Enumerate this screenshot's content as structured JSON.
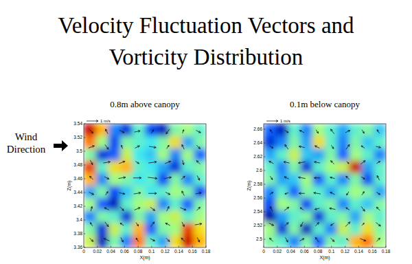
{
  "title": [
    "Velocity Fluctuation Vectors and",
    "Vorticity Distribution"
  ],
  "annotation": [
    "Wind",
    "Direction"
  ],
  "chart_data": [
    {
      "type": "heatmap",
      "title": "0.8m above canopy",
      "x_label": "X(m)",
      "y_label": "Z(m)",
      "xlim": [
        0,
        0.18
      ],
      "xticks": [
        0,
        0.02,
        0.04,
        0.06,
        0.08,
        0.1,
        0.12,
        0.14,
        0.16,
        0.18
      ],
      "ylim": [
        3.36,
        3.54
      ],
      "yticks": [
        3.36,
        3.38,
        3.4,
        3.42,
        3.44,
        3.46,
        3.48,
        3.5,
        3.52,
        3.54
      ],
      "cells": [
        [
          0.9,
          0.6,
          -0.3,
          -0.6,
          0.1,
          -0.5,
          -0.7,
          0.2,
          0.3,
          0.1
        ],
        [
          0.7,
          0.3,
          -0.5,
          0.2,
          0.1,
          0,
          0.2,
          0.5,
          -0.2,
          0.2
        ],
        [
          0.2,
          -0.6,
          -0.4,
          0.4,
          0,
          -0.1,
          0.3,
          -0.3,
          0.3,
          -0.4
        ],
        [
          0.8,
          0.1,
          0.5,
          0.6,
          0.1,
          0,
          -0.2,
          -0.6,
          0.1,
          0.2
        ],
        [
          0.6,
          -0.3,
          0.3,
          0.2,
          0,
          0.1,
          -0.5,
          0.2,
          -0.3,
          0.1
        ],
        [
          -0.2,
          0.2,
          -0.5,
          -0.1,
          0.2,
          0,
          0.1,
          0.3,
          0.2,
          -0.5
        ],
        [
          0.3,
          -0.4,
          -0.7,
          0.1,
          0.3,
          0.4,
          -0.3,
          0.1,
          -0.4,
          0.2
        ],
        [
          -0.3,
          0.2,
          0.1,
          -0.6,
          0.2,
          -0.2,
          0.3,
          0.4,
          0.1,
          0.3
        ],
        [
          0.2,
          -0.6,
          0.4,
          0.1,
          0.6,
          -0.4,
          0.2,
          0.3,
          0.8,
          0.5
        ],
        [
          0.4,
          -0.7,
          0.2,
          -0.3,
          0.7,
          0.1,
          -0.2,
          0.5,
          0.9,
          0.6
        ]
      ],
      "vectors": {
        "u": [
          [
            0.3,
            -0.2,
            0.4,
            0.5,
            0.2,
            -0.3,
            0.1,
            0.4
          ],
          [
            0.5,
            0.3,
            -0.1,
            0.4,
            0.6,
            0.2,
            -0.2,
            0.3
          ],
          [
            0.2,
            0.6,
            0.5,
            0.3,
            0.7,
            0.5,
            0.1,
            -0.3
          ],
          [
            -0.3,
            0.4,
            0.6,
            0.7,
            0.8,
            0.6,
            0.3,
            0.2
          ],
          [
            0.4,
            0.2,
            0.5,
            0.6,
            0.7,
            0.4,
            -0.2,
            0.5
          ],
          [
            0.1,
            -0.4,
            0.3,
            0.5,
            0.4,
            0.2,
            0.5,
            0.3
          ],
          [
            -0.2,
            0.3,
            -0.3,
            0.2,
            0.3,
            -0.4,
            0.2,
            0.6
          ],
          [
            0.3,
            -0.5,
            0.2,
            -0.2,
            0.4,
            0.3,
            -0.3,
            0.2
          ]
        ],
        "v": [
          [
            -0.3,
            0.4,
            -0.2,
            0.1,
            0.3,
            -0.4,
            0.3,
            -0.2
          ],
          [
            0.2,
            -0.4,
            0.3,
            0.2,
            -0.1,
            0.3,
            0.4,
            -0.3
          ],
          [
            -0.4,
            0.1,
            0.2,
            -0.2,
            0.1,
            0.2,
            -0.4,
            0.3
          ],
          [
            0.3,
            -0.2,
            0.1,
            0,
            -0.1,
            0.1,
            0.3,
            -0.4
          ],
          [
            -0.2,
            0.3,
            -0.1,
            0.1,
            0,
            -0.2,
            0.4,
            0.1
          ],
          [
            0.4,
            0.2,
            -0.3,
            0.2,
            -0.3,
            0.4,
            -0.2,
            0.3
          ],
          [
            0.3,
            -0.4,
            0.2,
            -0.3,
            0.4,
            0.2,
            -0.4,
            0.1
          ],
          [
            -0.3,
            0.2,
            -0.4,
            0.3,
            -0.2,
            -0.3,
            0.3,
            -0.4
          ]
        ]
      },
      "reference_vector": {
        "value": 1,
        "label": "1 m/s"
      }
    },
    {
      "type": "heatmap",
      "title": "0.1m below canopy",
      "x_label": "X(m)",
      "y_label": "Z(m)",
      "xlim": [
        0,
        0.18
      ],
      "xticks": [
        0,
        0.02,
        0.04,
        0.06,
        0.08,
        0.1,
        0.12,
        0.14,
        0.16,
        0.18
      ],
      "ylim": [
        2.488,
        2.668
      ],
      "yticks": [
        2.5,
        2.52,
        2.54,
        2.56,
        2.58,
        2.6,
        2.62,
        2.64,
        2.66
      ],
      "cells": [
        [
          -0.4,
          -0.7,
          0.1,
          -0.3,
          0.3,
          0.1,
          -0.2,
          0.1,
          0.2,
          -0.1
        ],
        [
          -0.6,
          -0.3,
          0.2,
          -0.2,
          0.5,
          0.1,
          -0.3,
          0.2,
          -0.1,
          0.1
        ],
        [
          -0.2,
          0.1,
          0.4,
          -0.1,
          -0.2,
          0.2,
          -0.4,
          0.3,
          0.1,
          -0.3
        ],
        [
          0.1,
          -0.3,
          0.2,
          -0.6,
          0.1,
          0.3,
          0.4,
          0.9,
          -0.2,
          0.1
        ],
        [
          0.2,
          -0.2,
          -0.1,
          0.3,
          -0.4,
          0.1,
          -0.3,
          0.2,
          -0.5,
          0.1
        ],
        [
          -0.3,
          0.1,
          -0.4,
          0.2,
          0.1,
          -0.2,
          0.1,
          0.3,
          0.2,
          -0.2
        ],
        [
          -0.5,
          0.3,
          0.2,
          -0.5,
          0.1,
          0.2,
          -0.3,
          0.1,
          -0.1,
          0.2
        ],
        [
          -0.8,
          -0.2,
          0.1,
          0.2,
          -0.6,
          0.1,
          0.2,
          -0.2,
          0.3,
          0.1
        ],
        [
          0.3,
          -0.6,
          0.2,
          -0.7,
          0.1,
          -0.3,
          0.4,
          0.1,
          0.5,
          0.2
        ],
        [
          0.2,
          0.1,
          -0.3,
          0.2,
          -0.4,
          0.2,
          0.1,
          0.6,
          0.7,
          0.3
        ]
      ],
      "vectors": {
        "u": [
          [
            -0.2,
            0.3,
            -0.4,
            0.2,
            -0.3,
            0.4,
            0.2,
            -0.2
          ],
          [
            0.3,
            -0.3,
            -0.5,
            -0.4,
            0.2,
            0.3,
            -0.3,
            0.4
          ],
          [
            -0.4,
            -0.5,
            -0.6,
            -0.5,
            -0.3,
            0.2,
            0.4,
            0.3
          ],
          [
            0.2,
            -0.4,
            -0.6,
            -0.5,
            -0.4,
            -0.3,
            0.3,
            -0.2
          ],
          [
            0.3,
            -0.3,
            -0.5,
            -0.6,
            -0.4,
            -0.2,
            0.2,
            0.3
          ],
          [
            -0.2,
            0.4,
            -0.3,
            -0.4,
            -0.5,
            -0.3,
            0.3,
            -0.3
          ],
          [
            0.4,
            0.3,
            -0.2,
            0.3,
            -0.3,
            0.4,
            0.2,
            0.4
          ],
          [
            -0.3,
            0.2,
            0.4,
            -0.3,
            0.3,
            -0.2,
            0.5,
            0.3
          ]
        ],
        "v": [
          [
            0.3,
            -0.2,
            0.2,
            -0.3,
            0.4,
            0.2,
            -0.3,
            0.3
          ],
          [
            -0.2,
            0.4,
            0.1,
            0.2,
            -0.3,
            0.4,
            0.2,
            -0.1
          ],
          [
            0.2,
            0.1,
            -0.1,
            0.1,
            0.3,
            -0.2,
            0.3,
            0.2
          ],
          [
            -0.3,
            0.2,
            0.1,
            0,
            0.1,
            0.3,
            -0.2,
            0.4
          ],
          [
            0.2,
            -0.1,
            0,
            0.1,
            0.2,
            -0.3,
            0.3,
            -0.2
          ],
          [
            0.4,
            0.3,
            0.2,
            -0.1,
            0.1,
            0.2,
            -0.4,
            0.3
          ],
          [
            -0.2,
            0.3,
            -0.4,
            0.3,
            -0.2,
            0.4,
            0.2,
            -0.3
          ],
          [
            0.3,
            -0.4,
            0.2,
            0.4,
            -0.3,
            0.2,
            -0.2,
            0.3
          ]
        ]
      },
      "reference_vector": {
        "value": 1,
        "label": "1 m/s"
      }
    }
  ]
}
